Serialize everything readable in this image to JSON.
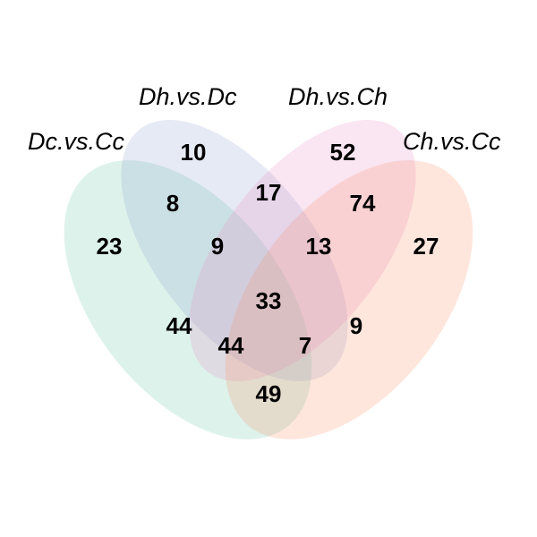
{
  "sets": [
    {
      "name": "Dc.vs.Cc",
      "color": "#66c2a5"
    },
    {
      "name": "Dh.vs.Dc",
      "color": "#8da0cb"
    },
    {
      "name": "Dh.vs.Ch",
      "color": "#e78ac3"
    },
    {
      "name": "Ch.vs.Cc",
      "color": "#fc8d62"
    }
  ],
  "regions": {
    "dc_only": "23",
    "dhdc_only": "10",
    "dhch_only": "52",
    "chcc_only": "27",
    "dc_dhdc": "8",
    "dhdc_dhch": "17",
    "dhch_chcc": "74",
    "dc_dhdc_dhch": "9",
    "dhdc_dhch_chcc": "13",
    "all_four": "33",
    "dc_dhch": "44",
    "dhdc_chcc": "9",
    "dc_dhch_chcc": "44",
    "dc_dhdc_chcc": "7",
    "dc_chcc": "49"
  }
}
